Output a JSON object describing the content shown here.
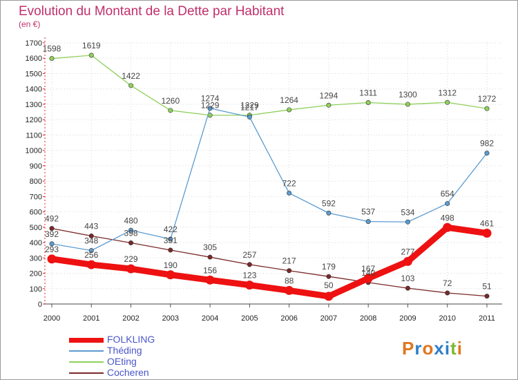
{
  "title": "Evolution du Montant de la Dette par Habitant",
  "subtitle": "(en €)",
  "logo": {
    "text": "Proxiti",
    "colors": [
      "#e2761e",
      "#2e7fc8",
      "#e2761e",
      "#2e7fc8",
      "#2e7fc8",
      "#7cb82f",
      "#e2761e"
    ]
  },
  "chart_data": {
    "type": "line",
    "x": [
      "2000",
      "2001",
      "2002",
      "2003",
      "2004",
      "2005",
      "2006",
      "2007",
      "2008",
      "2009",
      "2010",
      "2011"
    ],
    "ylim": [
      0,
      1700
    ],
    "yticks": [
      "0",
      "100",
      "200",
      "300",
      "400",
      "500",
      "600",
      "700",
      "800",
      "900",
      "1000",
      "1100",
      "1200",
      "1300",
      "1400",
      "1500",
      "1600",
      "1700"
    ],
    "series": [
      {
        "name": "FOLKLING",
        "color": "#ee1111",
        "values": [
          293,
          256,
          229,
          190,
          156,
          123,
          88,
          50,
          167,
          277,
          498,
          461
        ]
      },
      {
        "name": "Théding",
        "color": "#5b9bd0",
        "values": [
          392,
          348,
          480,
          422,
          1274,
          1217,
          722,
          592,
          537,
          534,
          654,
          982
        ]
      },
      {
        "name": "OEting",
        "color": "#8fd05a",
        "values": [
          1598,
          1619,
          1422,
          1260,
          1229,
          1229,
          1264,
          1294,
          1311,
          1300,
          1312,
          1272
        ]
      },
      {
        "name": "Cocheren",
        "color": "#7a2828",
        "values": [
          492,
          443,
          398,
          351,
          305,
          257,
          217,
          179,
          140,
          103,
          72,
          51
        ]
      }
    ]
  }
}
